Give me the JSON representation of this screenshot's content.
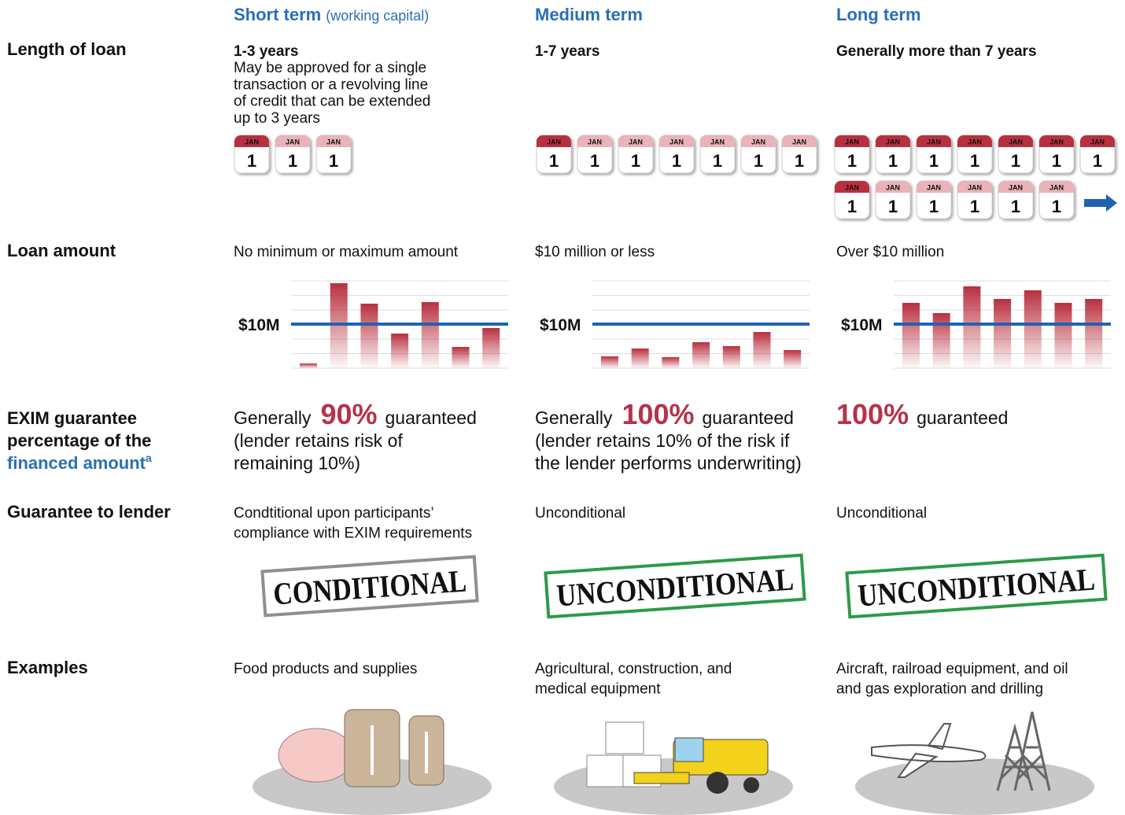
{
  "columns": [
    {
      "title": "Short term",
      "note": "(working capital)"
    },
    {
      "title": "Medium term"
    },
    {
      "title": "Long term"
    }
  ],
  "calendar": {
    "month": "JAN",
    "day": "1"
  },
  "threshold_label": "$10M",
  "rows": {
    "length": {
      "label": "Length of loan",
      "cells": [
        {
          "lead": "1-3 years",
          "lines": [
            "May be approved for a single",
            "transaction or a revolving line",
            "of credit that can be extended",
            "up to 3 years"
          ]
        },
        {
          "lead": "1-7 years"
        },
        {
          "lead": "Generally more than 7 years"
        }
      ]
    },
    "amount": {
      "label": "Loan amount",
      "cells": [
        "No minimum or maximum amount",
        "$10 million or less",
        "Over $10 million"
      ]
    },
    "guarantee": {
      "label_lines": [
        "EXIM guarantee",
        "percentage of the",
        "financed amount"
      ],
      "footnote": "a",
      "cells": [
        {
          "pre": "Generally",
          "percent": "90%",
          "post": "guaranteed",
          "lines": [
            "(lender retains risk of",
            "remaining 10%)"
          ]
        },
        {
          "pre": "Generally",
          "percent": "100%",
          "post": "guaranteed",
          "lines": [
            "(lender retains 10% of the risk if",
            "the lender performs underwriting)"
          ]
        },
        {
          "percent": "100%",
          "post": "guaranteed"
        }
      ]
    },
    "lender": {
      "label": "Guarantee to lender",
      "cells": [
        {
          "lines": [
            "Condtitional upon participants’",
            "compliance with EXIM requirements"
          ],
          "stamp": "CONDITIONAL"
        },
        {
          "lines": [
            "Unconditional"
          ],
          "stamp": "UNCONDITIONAL"
        },
        {
          "lines": [
            "Unconditional"
          ],
          "stamp": "UNCONDITIONAL"
        }
      ]
    },
    "examples": {
      "label": "Examples",
      "cells": [
        {
          "lines": [
            "Food products and supplies"
          ]
        },
        {
          "lines": [
            "Agricultural, construction, and",
            "medical equipment"
          ]
        },
        {
          "lines": [
            "Aircraft, railroad equipment, and oil",
            "and gas exploration and drilling"
          ]
        }
      ]
    }
  }
}
